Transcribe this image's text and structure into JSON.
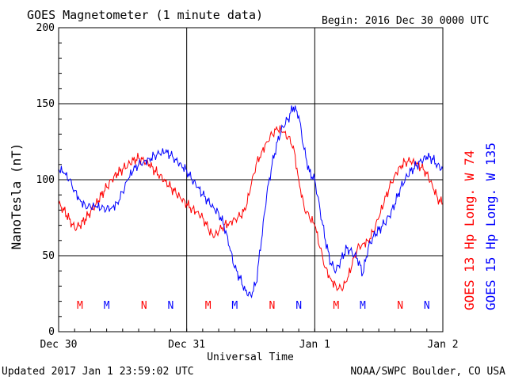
{
  "chart_data": {
    "type": "line",
    "title": "GOES Magnetometer (1 minute data)",
    "begin_label": "Begin:  2016 Dec 30 0000 UTC",
    "xlabel": "Universal Time",
    "ylabel": "NanoTesla (nT)",
    "ylim": [
      0,
      200
    ],
    "yticks": [
      0,
      50,
      100,
      150,
      200
    ],
    "xlim": [
      0,
      72
    ],
    "xunit": "hours since 2016 Dec 30 0000 UTC",
    "xticks": [
      {
        "x": 0,
        "label": "Dec 30"
      },
      {
        "x": 24,
        "label": "Dec 31"
      },
      {
        "x": 48,
        "label": "Jan 1"
      },
      {
        "x": 72,
        "label": "Jan 2"
      }
    ],
    "grid": true,
    "legend_position": "right (vertical)",
    "series": [
      {
        "name": "GOES 13 Hp  Long. W 74",
        "color": "#ff0000",
        "points": [
          [
            0,
            84
          ],
          [
            1,
            80
          ],
          [
            2,
            74
          ],
          [
            3,
            68
          ],
          [
            4,
            70
          ],
          [
            5,
            74
          ],
          [
            6,
            79
          ],
          [
            7,
            84
          ],
          [
            8,
            90
          ],
          [
            9,
            95
          ],
          [
            10,
            100
          ],
          [
            11,
            104
          ],
          [
            12,
            107
          ],
          [
            13,
            110
          ],
          [
            14,
            113
          ],
          [
            15,
            114
          ],
          [
            16,
            112
          ],
          [
            17,
            110
          ],
          [
            18,
            106
          ],
          [
            19,
            103
          ],
          [
            20,
            99
          ],
          [
            21,
            95
          ],
          [
            22,
            91
          ],
          [
            23,
            87
          ],
          [
            24,
            84
          ],
          [
            25,
            81
          ],
          [
            26,
            79
          ],
          [
            27,
            75
          ],
          [
            28,
            68
          ],
          [
            29,
            62
          ],
          [
            30,
            66
          ],
          [
            31,
            70
          ],
          [
            32,
            72
          ],
          [
            33,
            74
          ],
          [
            34,
            76
          ],
          [
            35,
            80
          ],
          [
            36,
            95
          ],
          [
            37,
            110
          ],
          [
            38,
            118
          ],
          [
            39,
            125
          ],
          [
            40,
            130
          ],
          [
            41,
            133
          ],
          [
            42,
            131
          ],
          [
            43,
            128
          ],
          [
            44,
            122
          ],
          [
            45,
            100
          ],
          [
            46,
            82
          ],
          [
            47,
            75
          ],
          [
            48,
            70
          ],
          [
            49,
            55
          ],
          [
            50,
            42
          ],
          [
            51,
            35
          ],
          [
            52,
            30
          ],
          [
            53,
            28
          ],
          [
            54,
            33
          ],
          [
            55,
            44
          ],
          [
            56,
            55
          ],
          [
            57,
            58
          ],
          [
            58,
            60
          ],
          [
            59,
            66
          ],
          [
            60,
            75
          ],
          [
            61,
            85
          ],
          [
            62,
            95
          ],
          [
            63,
            103
          ],
          [
            64,
            109
          ],
          [
            65,
            112
          ],
          [
            66,
            112
          ],
          [
            67,
            110
          ],
          [
            68,
            108
          ],
          [
            69,
            104
          ],
          [
            70,
            97
          ],
          [
            71,
            88
          ],
          [
            72,
            84
          ]
        ],
        "markers": [
          {
            "x": 4,
            "label": "M"
          },
          {
            "x": 16,
            "label": "N"
          },
          {
            "x": 28,
            "label": "M"
          },
          {
            "x": 40,
            "label": "N"
          },
          {
            "x": 52,
            "label": "M"
          },
          {
            "x": 64,
            "label": "N"
          }
        ]
      },
      {
        "name": "GOES 15 Hp  Long. W 135",
        "color": "#0000ff",
        "points": [
          [
            0,
            107
          ],
          [
            1,
            104
          ],
          [
            2,
            100
          ],
          [
            3,
            93
          ],
          [
            4,
            87
          ],
          [
            5,
            83
          ],
          [
            6,
            82
          ],
          [
            7,
            82
          ],
          [
            8,
            81
          ],
          [
            9,
            81
          ],
          [
            10,
            82
          ],
          [
            11,
            85
          ],
          [
            12,
            92
          ],
          [
            13,
            100
          ],
          [
            14,
            106
          ],
          [
            15,
            110
          ],
          [
            16,
            112
          ],
          [
            17,
            114
          ],
          [
            18,
            116
          ],
          [
            19,
            117
          ],
          [
            20,
            118
          ],
          [
            21,
            116
          ],
          [
            22,
            113
          ],
          [
            23,
            110
          ],
          [
            24,
            106
          ],
          [
            25,
            100
          ],
          [
            26,
            95
          ],
          [
            27,
            90
          ],
          [
            28,
            86
          ],
          [
            29,
            82
          ],
          [
            30,
            78
          ],
          [
            31,
            70
          ],
          [
            32,
            56
          ],
          [
            33,
            42
          ],
          [
            34,
            35
          ],
          [
            35,
            27
          ],
          [
            36,
            24
          ],
          [
            37,
            32
          ],
          [
            38,
            60
          ],
          [
            39,
            90
          ],
          [
            40,
            110
          ],
          [
            41,
            125
          ],
          [
            42,
            135
          ],
          [
            43,
            140
          ],
          [
            44,
            148
          ],
          [
            45,
            142
          ],
          [
            46,
            120
          ],
          [
            47,
            105
          ],
          [
            48,
            100
          ],
          [
            49,
            80
          ],
          [
            50,
            60
          ],
          [
            51,
            45
          ],
          [
            52,
            40
          ],
          [
            53,
            48
          ],
          [
            54,
            55
          ],
          [
            55,
            52
          ],
          [
            56,
            48
          ],
          [
            57,
            38
          ],
          [
            58,
            55
          ],
          [
            59,
            63
          ],
          [
            60,
            67
          ],
          [
            61,
            71
          ],
          [
            62,
            76
          ],
          [
            63,
            84
          ],
          [
            64,
            94
          ],
          [
            65,
            101
          ],
          [
            66,
            106
          ],
          [
            67,
            109
          ],
          [
            68,
            112
          ],
          [
            69,
            115
          ],
          [
            70,
            114
          ],
          [
            71,
            110
          ],
          [
            72,
            107
          ]
        ],
        "markers": [
          {
            "x": 9,
            "label": "M"
          },
          {
            "x": 21,
            "label": "N"
          },
          {
            "x": 33,
            "label": "M"
          },
          {
            "x": 45,
            "label": "N"
          },
          {
            "x": 57,
            "label": "M"
          },
          {
            "x": 69,
            "label": "N"
          }
        ]
      }
    ]
  },
  "footer": {
    "updated": "Updated 2017 Jan  1 23:59:02 UTC",
    "source": "NOAA/SWPC Boulder, CO USA"
  }
}
